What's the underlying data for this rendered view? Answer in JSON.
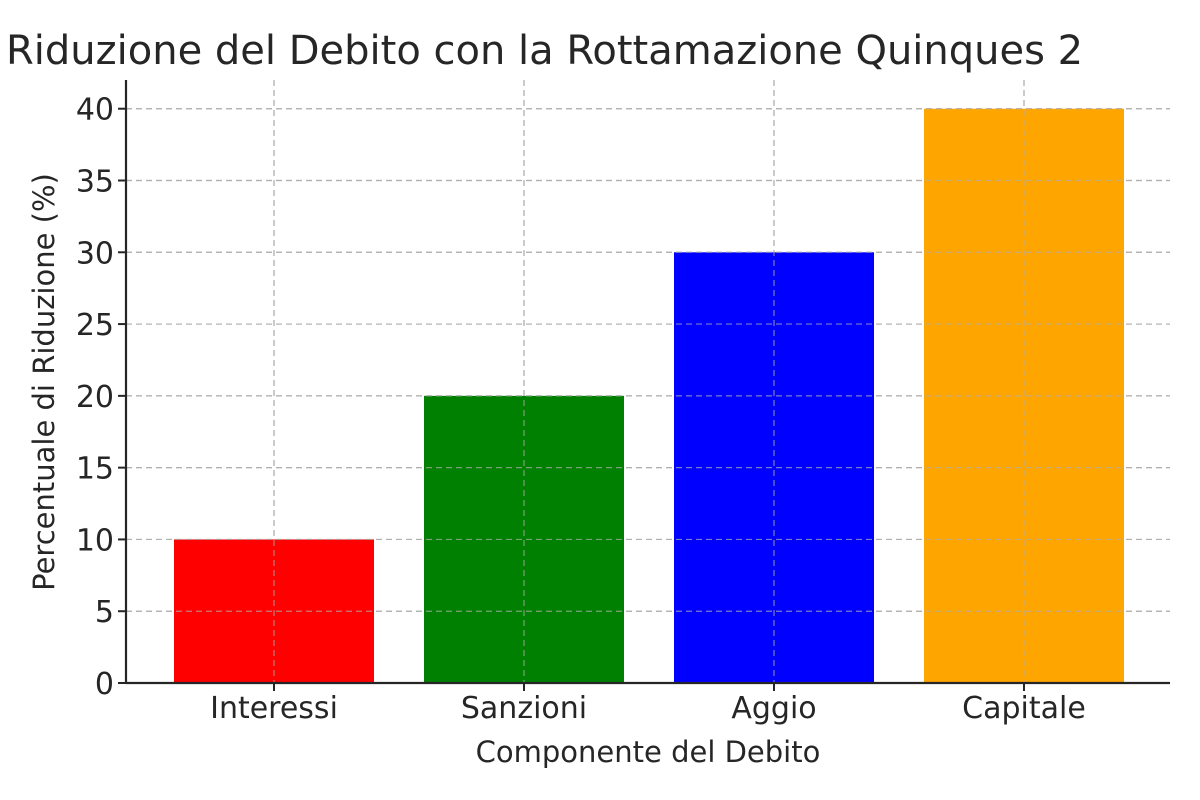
{
  "chart_data": {
    "type": "bar",
    "title": "Riduzione del Debito con la Rottamazione Quinques 2",
    "xlabel": "Componente del Debito",
    "ylabel": "Percentuale di Riduzione (%)",
    "categories": [
      "Interessi",
      "Sanzioni",
      "Aggio",
      "Capitale"
    ],
    "values": [
      10,
      20,
      30,
      40
    ],
    "colors": [
      "#ff0000",
      "#008000",
      "#0000ff",
      "#ffa500"
    ],
    "ylim": [
      0,
      42
    ],
    "yticks": [
      0,
      5,
      10,
      15,
      20,
      25,
      30,
      35,
      40
    ],
    "grid": true
  }
}
